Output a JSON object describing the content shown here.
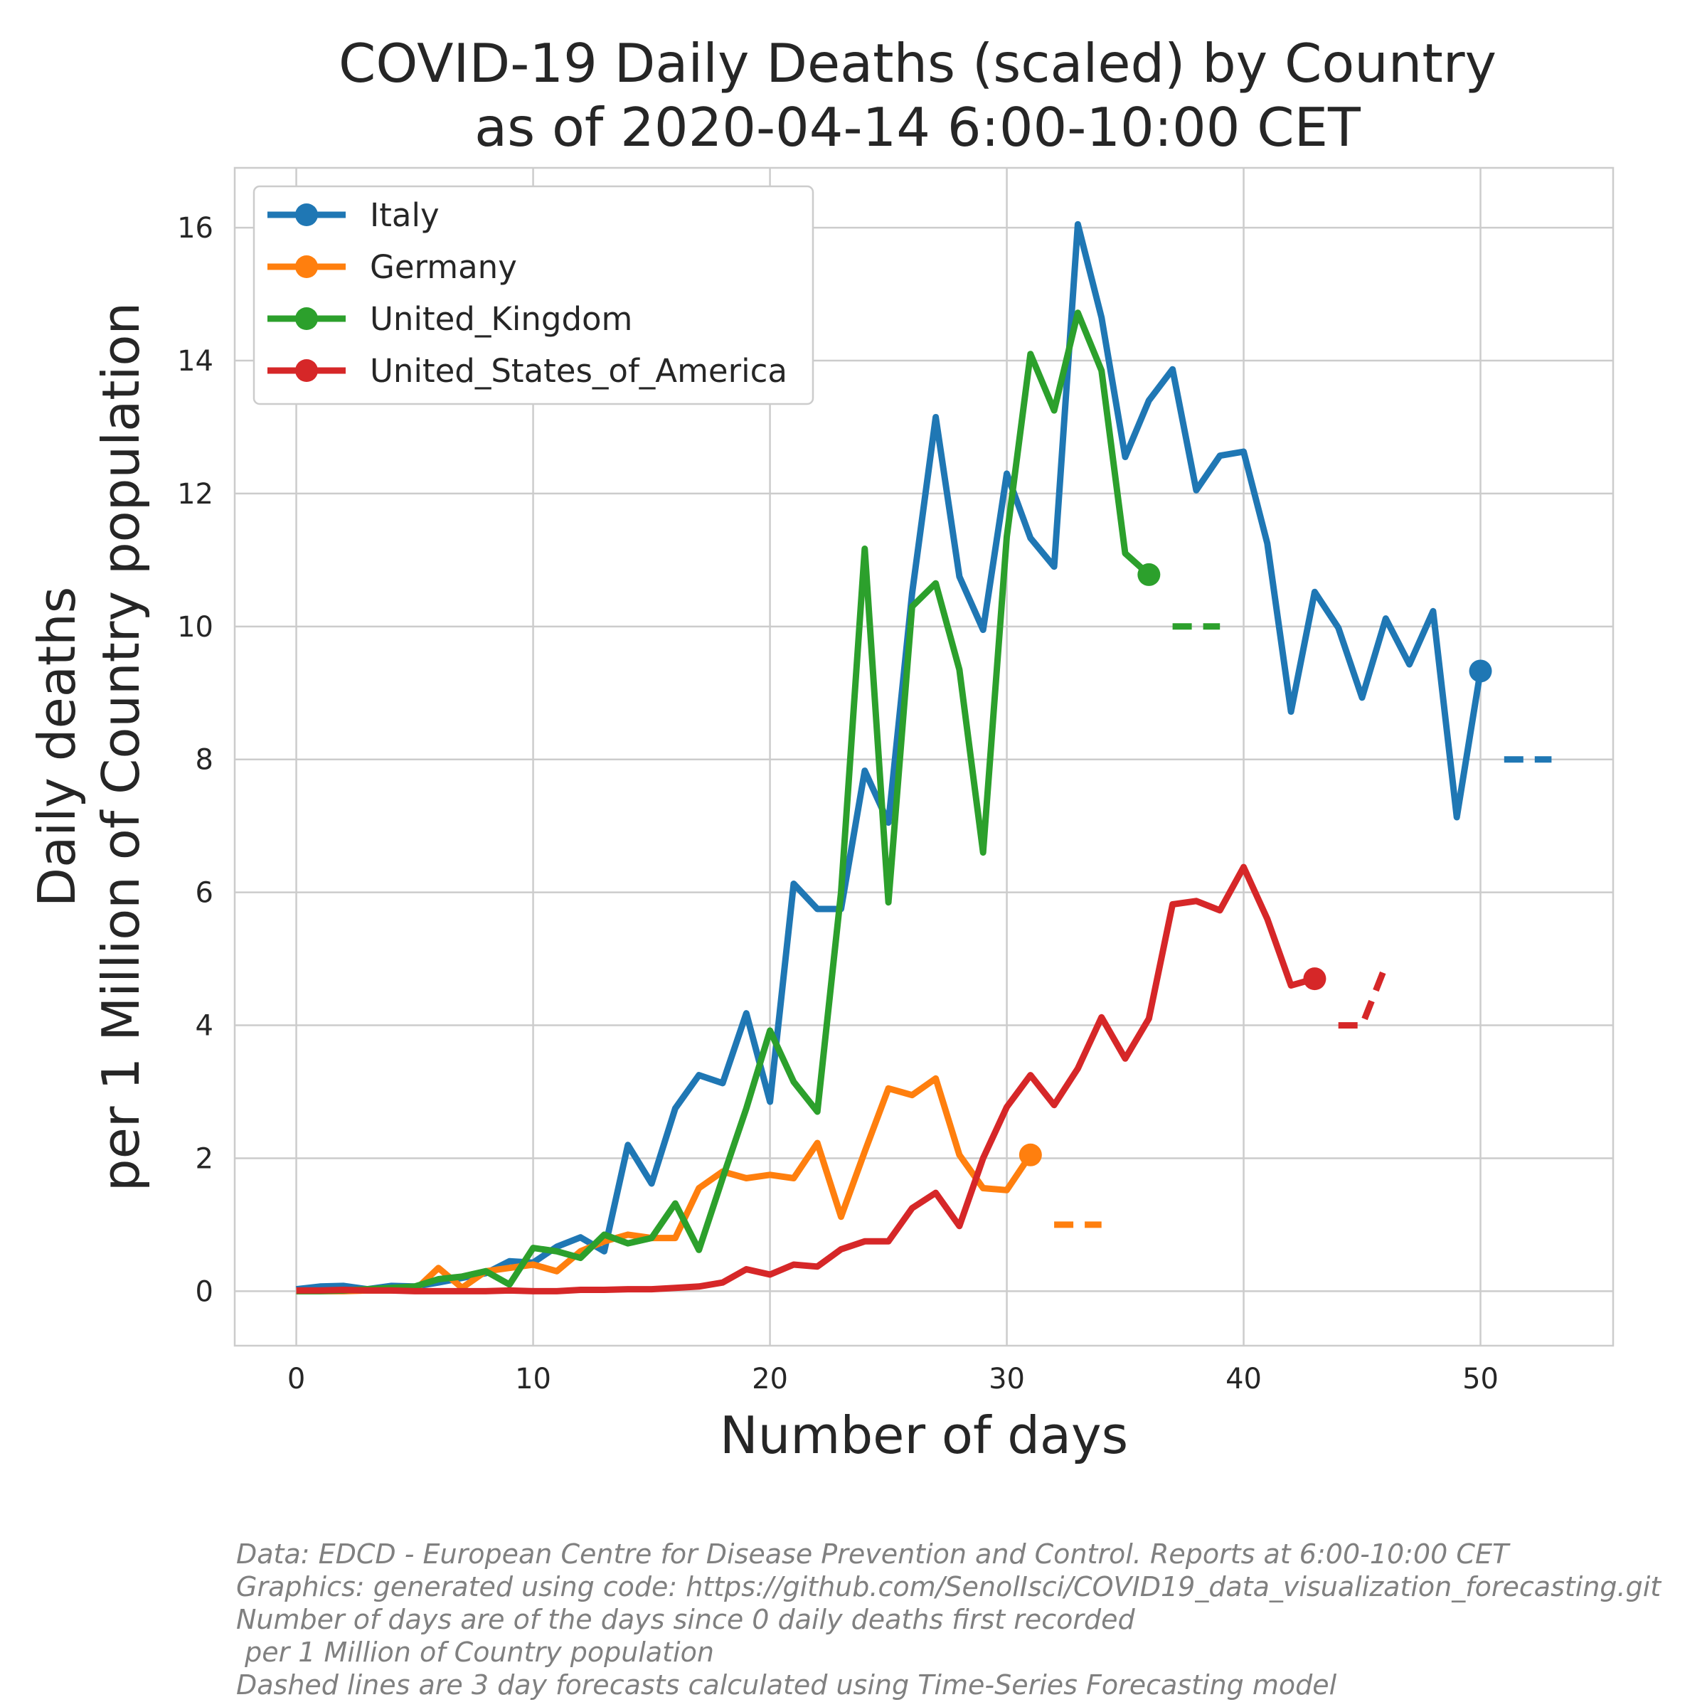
{
  "chart_data": {
    "type": "line",
    "title_lines": [
      "COVID-19 Daily Deaths (scaled) by Country",
      "as of 2020-04-14 6:00-10:00 CET"
    ],
    "xlabel": "Number of days",
    "ylabel_lines": [
      "Daily deaths",
      "per 1 Million of Country population"
    ],
    "xlim": [
      -2.6,
      55.6
    ],
    "ylim": [
      -0.82,
      16.9
    ],
    "x_ticks": [
      0,
      10,
      20,
      30,
      40,
      50
    ],
    "y_ticks": [
      0,
      2,
      4,
      6,
      8,
      10,
      12,
      14,
      16
    ],
    "grid": true,
    "legend_position": "top-left",
    "series": [
      {
        "name": "Italy",
        "color": "#1f77b4",
        "values": [
          0.03,
          0.07,
          0.08,
          0.03,
          0.08,
          0.07,
          0.13,
          0.2,
          0.27,
          0.45,
          0.43,
          0.67,
          0.81,
          0.6,
          2.2,
          1.62,
          2.75,
          3.25,
          3.13,
          4.18,
          2.85,
          6.13,
          5.75,
          5.75,
          7.83,
          7.05,
          10.5,
          13.15,
          10.75,
          9.95,
          12.3,
          11.33,
          10.9,
          16.05,
          14.65,
          12.55,
          13.4,
          13.87,
          12.05,
          12.57,
          12.63,
          11.25,
          8.72,
          10.52,
          9.98,
          8.93,
          10.12,
          9.43,
          10.23,
          7.13,
          9.33
        ],
        "forecast_x": [
          51,
          52,
          53
        ],
        "forecast_values": [
          8.0,
          8.0,
          8.0
        ]
      },
      {
        "name": "Germany",
        "color": "#ff7f0e",
        "values": [
          0,
          0,
          0,
          0.01,
          0.01,
          0.01,
          0.35,
          0.05,
          0.3,
          0.35,
          0.4,
          0.3,
          0.6,
          0.75,
          0.85,
          0.8,
          0.8,
          1.55,
          1.8,
          1.7,
          1.75,
          1.7,
          2.23,
          1.12,
          2.1,
          3.05,
          2.95,
          3.2,
          2.05,
          1.55,
          1.52,
          2.05
        ],
        "forecast_x": [
          32,
          33,
          34
        ],
        "forecast_values": [
          1.0,
          1.0,
          1.0
        ]
      },
      {
        "name": "United_Kingdom",
        "color": "#2ca02c",
        "values": [
          0,
          0,
          0.01,
          0.03,
          0.05,
          0.07,
          0.18,
          0.22,
          0.3,
          0.1,
          0.65,
          0.6,
          0.5,
          0.85,
          0.72,
          0.8,
          1.32,
          0.62,
          1.7,
          2.75,
          3.92,
          3.15,
          2.7,
          6.0,
          11.17,
          5.85,
          10.3,
          10.65,
          9.35,
          6.6,
          11.35,
          14.1,
          13.25,
          14.72,
          13.85,
          11.1,
          10.78
        ],
        "forecast_x": [
          37,
          38,
          39
        ],
        "forecast_values": [
          10.0,
          10.0,
          10.0
        ]
      },
      {
        "name": "United_States_of_America",
        "color": "#d62728",
        "values": [
          0.01,
          0.01,
          0.02,
          0.01,
          0.01,
          0.0,
          0.0,
          0.0,
          0.0,
          0.01,
          0.0,
          0.0,
          0.02,
          0.02,
          0.03,
          0.03,
          0.05,
          0.07,
          0.13,
          0.33,
          0.25,
          0.4,
          0.37,
          0.63,
          0.75,
          0.75,
          1.25,
          1.48,
          0.98,
          2.0,
          2.77,
          3.25,
          2.8,
          3.35,
          4.12,
          3.5,
          4.1,
          5.82,
          5.87,
          5.73,
          6.38,
          5.6,
          4.6,
          4.7
        ],
        "forecast_x": [
          44,
          45,
          46
        ],
        "forecast_values": [
          4.0,
          4.0,
          4.9
        ]
      }
    ]
  },
  "footnotes": [
    "Data: EDCD - European Centre for Disease Prevention and Control. Reports at 6:00-10:00 CET",
    "Graphics: generated using code: https://github.com/SenolIsci/COVID19_data_visualization_forecasting.git",
    "Number of days are of the days since 0 daily deaths first recorded",
    " per 1 Million of Country population",
    "Dashed lines are 3 day forecasts calculated using Time-Series Forecasting model"
  ]
}
